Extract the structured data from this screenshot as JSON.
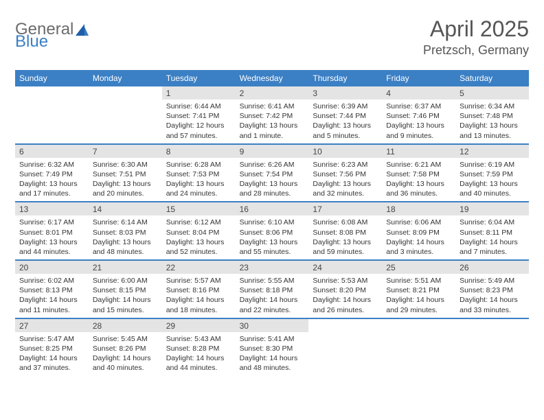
{
  "logo": {
    "line1": "General",
    "line2": "Blue"
  },
  "title": {
    "month": "April 2025",
    "location": "Pretzsch, Germany"
  },
  "colors": {
    "header_bg": "#3b7fc4",
    "daynum_bg": "#e4e4e4",
    "rule": "#3b7fc4",
    "text": "#333333",
    "logo_gray": "#6b6b6b",
    "logo_blue": "#3b7fc4"
  },
  "weekdays": [
    "Sunday",
    "Monday",
    "Tuesday",
    "Wednesday",
    "Thursday",
    "Friday",
    "Saturday"
  ],
  "weeks": [
    [
      {
        "empty": true
      },
      {
        "empty": true
      },
      {
        "day": "1",
        "sunrise": "Sunrise: 6:44 AM",
        "sunset": "Sunset: 7:41 PM",
        "daylight": "Daylight: 12 hours and 57 minutes."
      },
      {
        "day": "2",
        "sunrise": "Sunrise: 6:41 AM",
        "sunset": "Sunset: 7:42 PM",
        "daylight": "Daylight: 13 hours and 1 minute."
      },
      {
        "day": "3",
        "sunrise": "Sunrise: 6:39 AM",
        "sunset": "Sunset: 7:44 PM",
        "daylight": "Daylight: 13 hours and 5 minutes."
      },
      {
        "day": "4",
        "sunrise": "Sunrise: 6:37 AM",
        "sunset": "Sunset: 7:46 PM",
        "daylight": "Daylight: 13 hours and 9 minutes."
      },
      {
        "day": "5",
        "sunrise": "Sunrise: 6:34 AM",
        "sunset": "Sunset: 7:48 PM",
        "daylight": "Daylight: 13 hours and 13 minutes."
      }
    ],
    [
      {
        "day": "6",
        "sunrise": "Sunrise: 6:32 AM",
        "sunset": "Sunset: 7:49 PM",
        "daylight": "Daylight: 13 hours and 17 minutes."
      },
      {
        "day": "7",
        "sunrise": "Sunrise: 6:30 AM",
        "sunset": "Sunset: 7:51 PM",
        "daylight": "Daylight: 13 hours and 20 minutes."
      },
      {
        "day": "8",
        "sunrise": "Sunrise: 6:28 AM",
        "sunset": "Sunset: 7:53 PM",
        "daylight": "Daylight: 13 hours and 24 minutes."
      },
      {
        "day": "9",
        "sunrise": "Sunrise: 6:26 AM",
        "sunset": "Sunset: 7:54 PM",
        "daylight": "Daylight: 13 hours and 28 minutes."
      },
      {
        "day": "10",
        "sunrise": "Sunrise: 6:23 AM",
        "sunset": "Sunset: 7:56 PM",
        "daylight": "Daylight: 13 hours and 32 minutes."
      },
      {
        "day": "11",
        "sunrise": "Sunrise: 6:21 AM",
        "sunset": "Sunset: 7:58 PM",
        "daylight": "Daylight: 13 hours and 36 minutes."
      },
      {
        "day": "12",
        "sunrise": "Sunrise: 6:19 AM",
        "sunset": "Sunset: 7:59 PM",
        "daylight": "Daylight: 13 hours and 40 minutes."
      }
    ],
    [
      {
        "day": "13",
        "sunrise": "Sunrise: 6:17 AM",
        "sunset": "Sunset: 8:01 PM",
        "daylight": "Daylight: 13 hours and 44 minutes."
      },
      {
        "day": "14",
        "sunrise": "Sunrise: 6:14 AM",
        "sunset": "Sunset: 8:03 PM",
        "daylight": "Daylight: 13 hours and 48 minutes."
      },
      {
        "day": "15",
        "sunrise": "Sunrise: 6:12 AM",
        "sunset": "Sunset: 8:04 PM",
        "daylight": "Daylight: 13 hours and 52 minutes."
      },
      {
        "day": "16",
        "sunrise": "Sunrise: 6:10 AM",
        "sunset": "Sunset: 8:06 PM",
        "daylight": "Daylight: 13 hours and 55 minutes."
      },
      {
        "day": "17",
        "sunrise": "Sunrise: 6:08 AM",
        "sunset": "Sunset: 8:08 PM",
        "daylight": "Daylight: 13 hours and 59 minutes."
      },
      {
        "day": "18",
        "sunrise": "Sunrise: 6:06 AM",
        "sunset": "Sunset: 8:09 PM",
        "daylight": "Daylight: 14 hours and 3 minutes."
      },
      {
        "day": "19",
        "sunrise": "Sunrise: 6:04 AM",
        "sunset": "Sunset: 8:11 PM",
        "daylight": "Daylight: 14 hours and 7 minutes."
      }
    ],
    [
      {
        "day": "20",
        "sunrise": "Sunrise: 6:02 AM",
        "sunset": "Sunset: 8:13 PM",
        "daylight": "Daylight: 14 hours and 11 minutes."
      },
      {
        "day": "21",
        "sunrise": "Sunrise: 6:00 AM",
        "sunset": "Sunset: 8:15 PM",
        "daylight": "Daylight: 14 hours and 15 minutes."
      },
      {
        "day": "22",
        "sunrise": "Sunrise: 5:57 AM",
        "sunset": "Sunset: 8:16 PM",
        "daylight": "Daylight: 14 hours and 18 minutes."
      },
      {
        "day": "23",
        "sunrise": "Sunrise: 5:55 AM",
        "sunset": "Sunset: 8:18 PM",
        "daylight": "Daylight: 14 hours and 22 minutes."
      },
      {
        "day": "24",
        "sunrise": "Sunrise: 5:53 AM",
        "sunset": "Sunset: 8:20 PM",
        "daylight": "Daylight: 14 hours and 26 minutes."
      },
      {
        "day": "25",
        "sunrise": "Sunrise: 5:51 AM",
        "sunset": "Sunset: 8:21 PM",
        "daylight": "Daylight: 14 hours and 29 minutes."
      },
      {
        "day": "26",
        "sunrise": "Sunrise: 5:49 AM",
        "sunset": "Sunset: 8:23 PM",
        "daylight": "Daylight: 14 hours and 33 minutes."
      }
    ],
    [
      {
        "day": "27",
        "sunrise": "Sunrise: 5:47 AM",
        "sunset": "Sunset: 8:25 PM",
        "daylight": "Daylight: 14 hours and 37 minutes."
      },
      {
        "day": "28",
        "sunrise": "Sunrise: 5:45 AM",
        "sunset": "Sunset: 8:26 PM",
        "daylight": "Daylight: 14 hours and 40 minutes."
      },
      {
        "day": "29",
        "sunrise": "Sunrise: 5:43 AM",
        "sunset": "Sunset: 8:28 PM",
        "daylight": "Daylight: 14 hours and 44 minutes."
      },
      {
        "day": "30",
        "sunrise": "Sunrise: 5:41 AM",
        "sunset": "Sunset: 8:30 PM",
        "daylight": "Daylight: 14 hours and 48 minutes."
      },
      {
        "empty": true
      },
      {
        "empty": true
      },
      {
        "empty": true
      }
    ]
  ]
}
